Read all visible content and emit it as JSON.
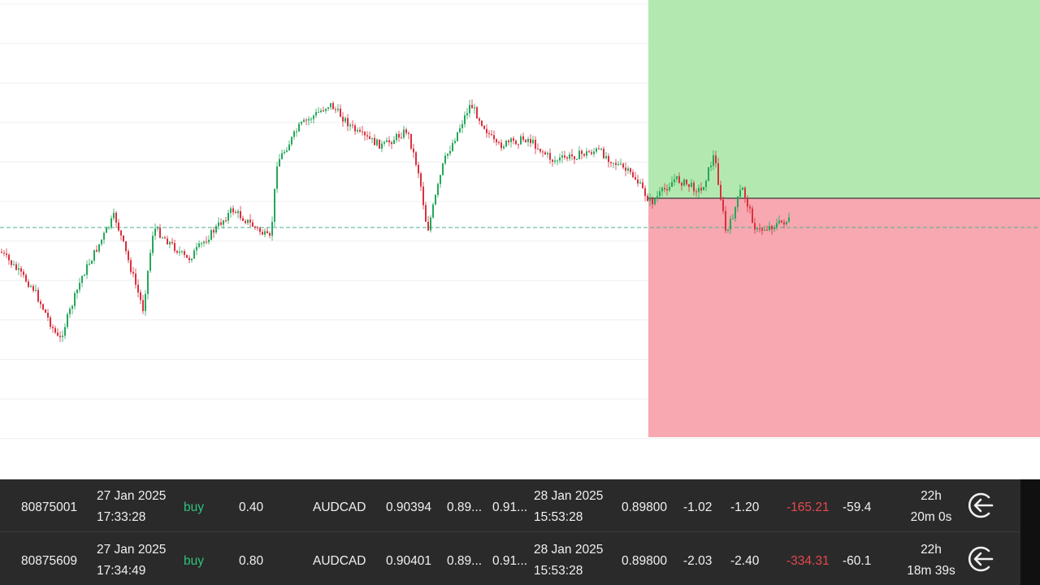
{
  "chart": {
    "colors": {
      "up": "#26a65b",
      "down": "#d9303e",
      "take_profit_zone": "#b3e9b1",
      "stop_loss_zone": "#f7a8b0",
      "grid": "#efefef",
      "current_price_line": "#4caf8f",
      "entry_line": "#3a3a3a"
    }
  },
  "trades": [
    {
      "ticket": "80875001",
      "open_date": "27 Jan 2025",
      "open_time": "17:33:28",
      "side": "buy",
      "volume": "0.40",
      "symbol": "AUDCAD",
      "open_price": "0.90394",
      "stop_loss": "0.89...",
      "take_profit": "0.91...",
      "close_date": "28 Jan 2025",
      "close_time": "15:53:28",
      "close_price": "0.89800",
      "commission": "-1.02",
      "swap": "-1.20",
      "profit": "-165.21",
      "pips": "-59.4",
      "duration_hours": "22h",
      "duration_rest": "20m 0s",
      "close_icon": "close-trade-arrow-icon"
    },
    {
      "ticket": "80875609",
      "open_date": "27 Jan 2025",
      "open_time": "17:34:49",
      "side": "buy",
      "volume": "0.80",
      "symbol": "AUDCAD",
      "open_price": "0.90401",
      "stop_loss": "0.89...",
      "take_profit": "0.91...",
      "close_date": "28 Jan 2025",
      "close_time": "15:53:28",
      "close_price": "0.89800",
      "commission": "-2.03",
      "swap": "-2.40",
      "profit": "-334.31",
      "pips": "-60.1",
      "duration_hours": "22h",
      "duration_rest": "18m 39s",
      "close_icon": "close-trade-arrow-icon"
    }
  ]
}
